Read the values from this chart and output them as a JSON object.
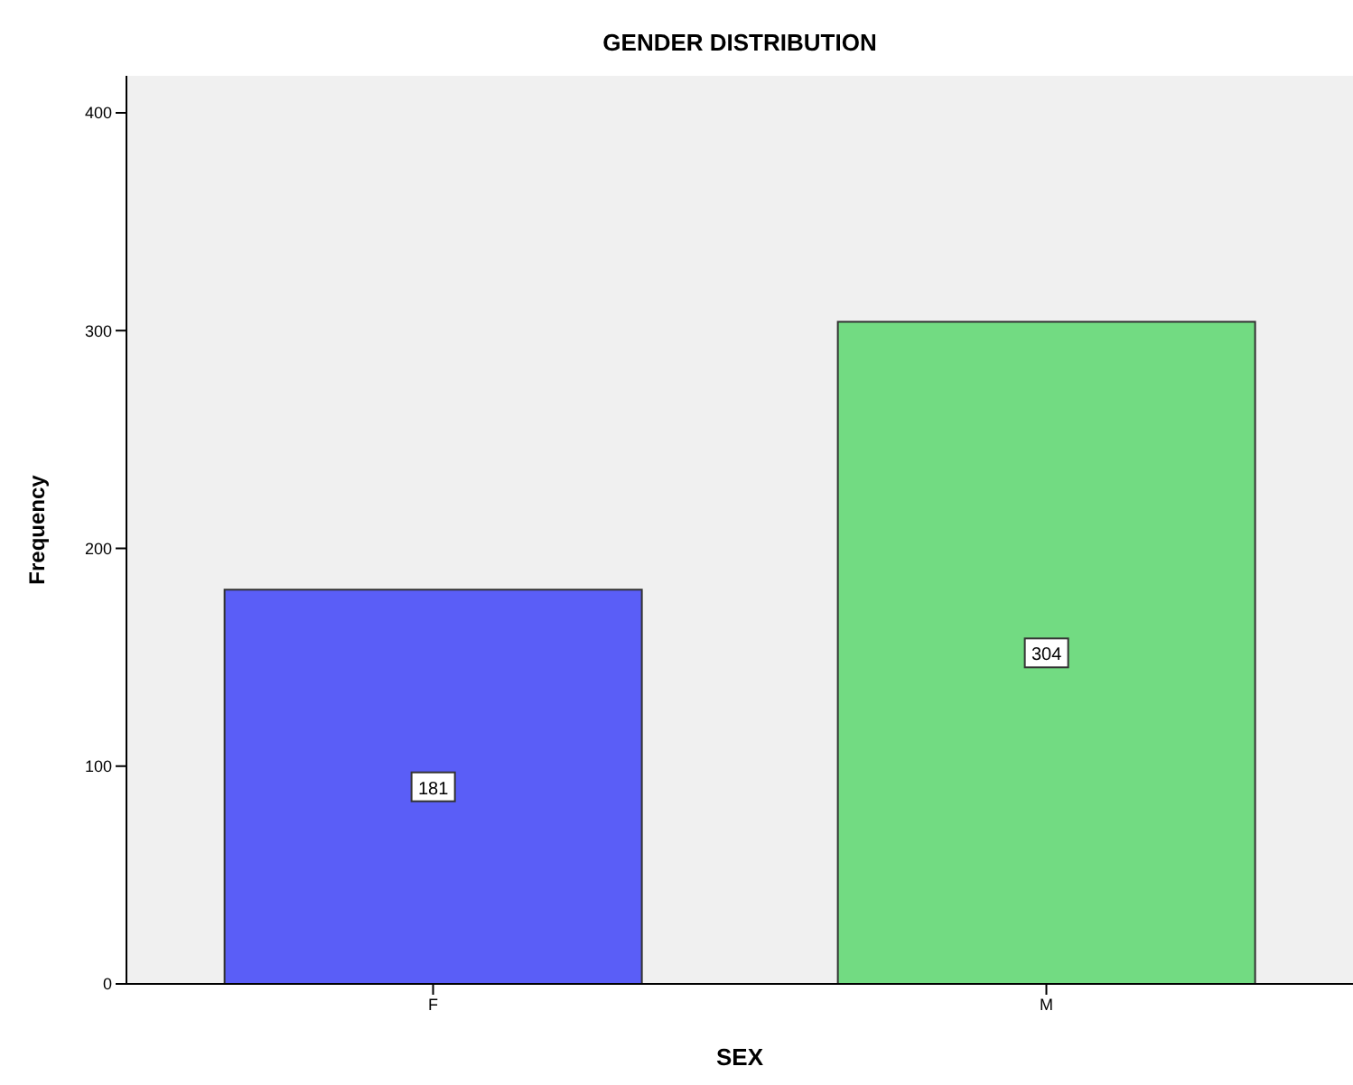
{
  "chart_data": {
    "type": "bar",
    "title": "GENDER DISTRIBUTION",
    "xlabel": "SEX",
    "ylabel": "Frequency",
    "categories": [
      "F",
      "M"
    ],
    "values": [
      181,
      304
    ],
    "colors": [
      "#5a5ef7",
      "#72db82"
    ],
    "ylim": [
      0,
      417
    ],
    "yticks": [
      0,
      100,
      200,
      300,
      400
    ],
    "data_labels": true
  }
}
